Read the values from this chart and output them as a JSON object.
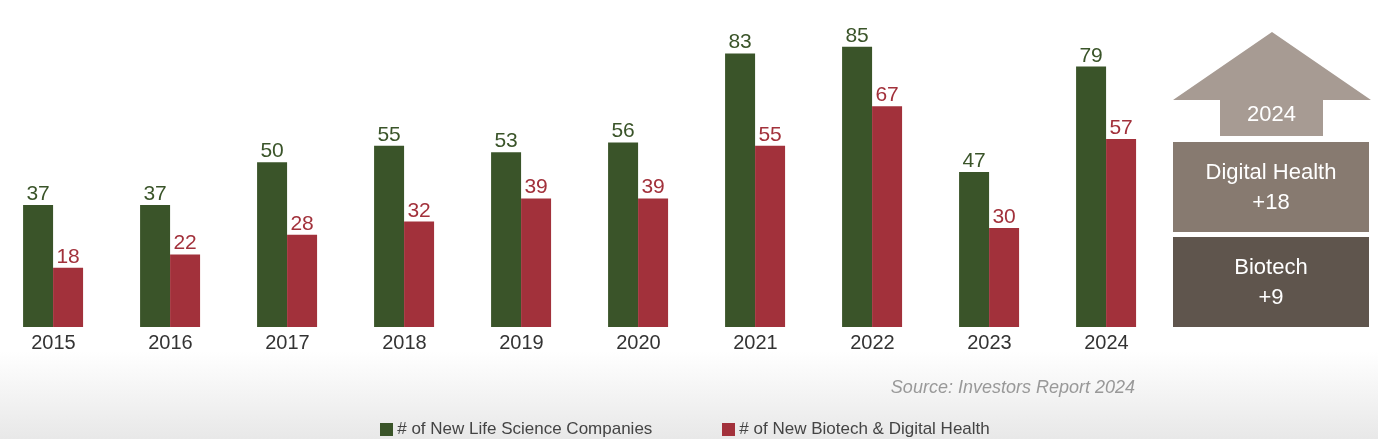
{
  "chart_data": {
    "type": "bar",
    "categories": [
      "2015",
      "2016",
      "2017",
      "2018",
      "2019",
      "2020",
      "2021",
      "2022",
      "2023",
      "2024"
    ],
    "series": [
      {
        "name": "# of New Life Science Companies",
        "color": "#3a5429",
        "values": [
          37,
          37,
          50,
          55,
          53,
          56,
          83,
          85,
          47,
          79
        ]
      },
      {
        "name": "# of New Biotech & Digital Health",
        "color": "#a2313b",
        "values": [
          18,
          22,
          28,
          32,
          39,
          39,
          55,
          67,
          30,
          57
        ]
      }
    ],
    "data_labels": true,
    "legend": "bottom",
    "annotations": [
      "Source: Investors Report 2024",
      "2024",
      "Digital Health\n+18",
      "Biotech\n+9"
    ]
  }
}
